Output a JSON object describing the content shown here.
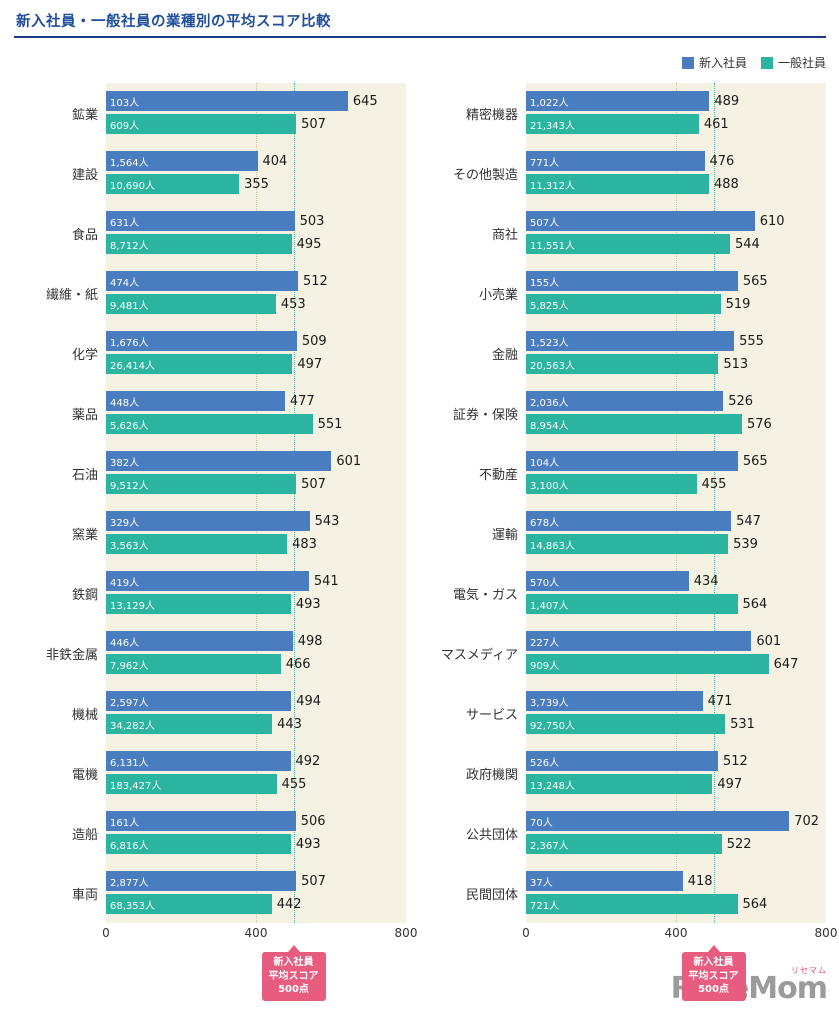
{
  "header": {
    "title": "新入社員・一般社員の業種別の平均スコア比較"
  },
  "legend": [
    {
      "label": "新入社員",
      "color": "#4a7cc0"
    },
    {
      "label": "一般社員",
      "color": "#2bb5a0"
    }
  ],
  "colors": {
    "shinnyu_blue": "#4a7cc0",
    "ippan_teal": "#2bb5a0",
    "annotation_pink": "#e85c7f",
    "title_blue": "#1f4e9c",
    "plot_background": "#f6f2e3"
  },
  "axis": {
    "tick0": "0",
    "tick400": "400",
    "tick800": "800"
  },
  "annotation": {
    "lines": [
      "新入社員",
      "平均スコア",
      "500点"
    ],
    "value": 500
  },
  "logo": {
    "sub": "リセマム",
    "main": "ReseMom"
  },
  "chart_data": {
    "type": "bar",
    "orientation": "horizontal",
    "title": "新入社員・一般社員の業種別の平均スコア比較",
    "xlim": [
      0,
      800
    ],
    "ticks": [
      0,
      400,
      800
    ],
    "reference_line": {
      "value": 500,
      "label": "新入社員平均スコア500点"
    },
    "series_names": [
      "新入社員",
      "一般社員"
    ],
    "panels": [
      {
        "rows": [
          {
            "category": "鉱業",
            "shinnyu": {
              "count": "103人",
              "score": 645
            },
            "ippan": {
              "count": "609人",
              "score": 507
            }
          },
          {
            "category": "建設",
            "shinnyu": {
              "count": "1,564人",
              "score": 404
            },
            "ippan": {
              "count": "10,690人",
              "score": 355
            }
          },
          {
            "category": "食品",
            "shinnyu": {
              "count": "631人",
              "score": 503
            },
            "ippan": {
              "count": "8,712人",
              "score": 495
            }
          },
          {
            "category": "繊維・紙",
            "shinnyu": {
              "count": "474人",
              "score": 512
            },
            "ippan": {
              "count": "9,481人",
              "score": 453
            }
          },
          {
            "category": "化学",
            "shinnyu": {
              "count": "1,676人",
              "score": 509
            },
            "ippan": {
              "count": "26,414人",
              "score": 497
            }
          },
          {
            "category": "薬品",
            "shinnyu": {
              "count": "448人",
              "score": 477
            },
            "ippan": {
              "count": "5,626人",
              "score": 551
            }
          },
          {
            "category": "石油",
            "shinnyu": {
              "count": "382人",
              "score": 601
            },
            "ippan": {
              "count": "9,512人",
              "score": 507
            }
          },
          {
            "category": "窯業",
            "shinnyu": {
              "count": "329人",
              "score": 543
            },
            "ippan": {
              "count": "3,563人",
              "score": 483
            }
          },
          {
            "category": "鉄鋼",
            "shinnyu": {
              "count": "419人",
              "score": 541
            },
            "ippan": {
              "count": "13,129人",
              "score": 493
            }
          },
          {
            "category": "非鉄金属",
            "shinnyu": {
              "count": "446人",
              "score": 498
            },
            "ippan": {
              "count": "7,962人",
              "score": 466
            }
          },
          {
            "category": "機械",
            "shinnyu": {
              "count": "2,597人",
              "score": 494
            },
            "ippan": {
              "count": "34,282人",
              "score": 443
            }
          },
          {
            "category": "電機",
            "shinnyu": {
              "count": "6,131人",
              "score": 492
            },
            "ippan": {
              "count": "183,427人",
              "score": 455
            }
          },
          {
            "category": "造船",
            "shinnyu": {
              "count": "161人",
              "score": 506
            },
            "ippan": {
              "count": "6,816人",
              "score": 493
            }
          },
          {
            "category": "車両",
            "shinnyu": {
              "count": "2,877人",
              "score": 507
            },
            "ippan": {
              "count": "68,353人",
              "score": 442
            }
          }
        ]
      },
      {
        "rows": [
          {
            "category": "精密機器",
            "shinnyu": {
              "count": "1,022人",
              "score": 489
            },
            "ippan": {
              "count": "21,343人",
              "score": 461
            }
          },
          {
            "category": "その他製造",
            "shinnyu": {
              "count": "771人",
              "score": 476
            },
            "ippan": {
              "count": "11,312人",
              "score": 488
            }
          },
          {
            "category": "商社",
            "shinnyu": {
              "count": "507人",
              "score": 610
            },
            "ippan": {
              "count": "11,551人",
              "score": 544
            }
          },
          {
            "category": "小売業",
            "shinnyu": {
              "count": "155人",
              "score": 565
            },
            "ippan": {
              "count": "5,825人",
              "score": 519
            }
          },
          {
            "category": "金融",
            "shinnyu": {
              "count": "1,523人",
              "score": 555
            },
            "ippan": {
              "count": "20,563人",
              "score": 513
            }
          },
          {
            "category": "証券・保険",
            "shinnyu": {
              "count": "2,036人",
              "score": 526
            },
            "ippan": {
              "count": "8,954人",
              "score": 576
            }
          },
          {
            "category": "不動産",
            "shinnyu": {
              "count": "104人",
              "score": 565
            },
            "ippan": {
              "count": "3,100人",
              "score": 455
            }
          },
          {
            "category": "運輸",
            "shinnyu": {
              "count": "678人",
              "score": 547
            },
            "ippan": {
              "count": "14,863人",
              "score": 539
            }
          },
          {
            "category": "電気・ガス",
            "shinnyu": {
              "count": "570人",
              "score": 434
            },
            "ippan": {
              "count": "1,407人",
              "score": 564
            }
          },
          {
            "category": "マスメディア",
            "shinnyu": {
              "count": "227人",
              "score": 601
            },
            "ippan": {
              "count": "909人",
              "score": 647
            }
          },
          {
            "category": "サービス",
            "shinnyu": {
              "count": "3,739人",
              "score": 471
            },
            "ippan": {
              "count": "92,750人",
              "score": 531
            }
          },
          {
            "category": "政府機関",
            "shinnyu": {
              "count": "526人",
              "score": 512
            },
            "ippan": {
              "count": "13,248人",
              "score": 497
            }
          },
          {
            "category": "公共団体",
            "shinnyu": {
              "count": "70人",
              "score": 702
            },
            "ippan": {
              "count": "2,367人",
              "score": 522
            }
          },
          {
            "category": "民間団体",
            "shinnyu": {
              "count": "37人",
              "score": 418
            },
            "ippan": {
              "count": "721人",
              "score": 564
            }
          }
        ]
      }
    ]
  }
}
